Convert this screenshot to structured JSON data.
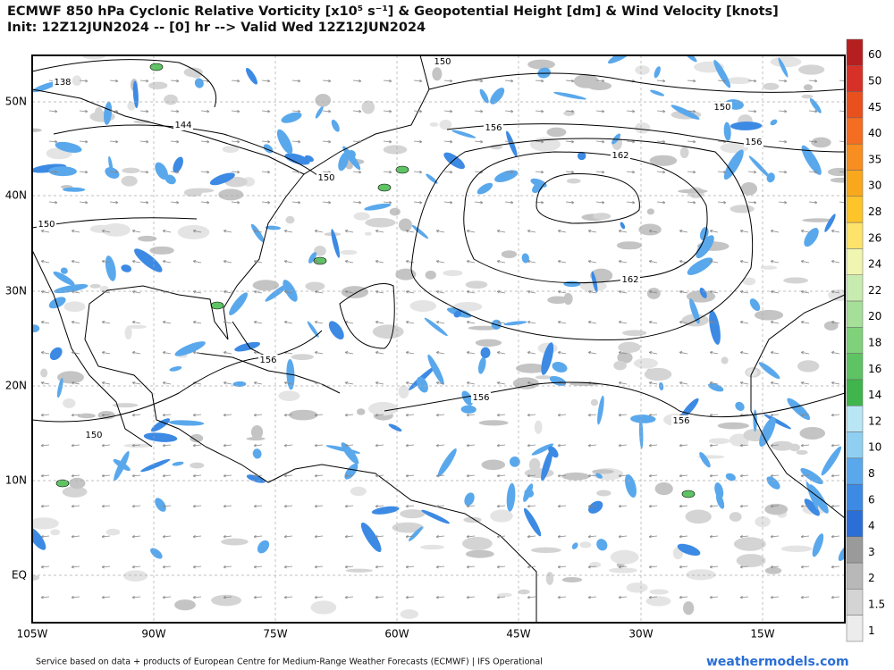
{
  "header": {
    "title": "ECMWF 850 hPa Cyclonic Relative Vorticity [x10⁵ s⁻¹] & Geopotential Height [dm] & Wind Velocity [knots]",
    "subtitle": "Init: 12Z12JUN2024 -- [0] hr --> Valid Wed 12Z12JUN2024"
  },
  "map": {
    "lat_labels": [
      "50N",
      "40N",
      "30N",
      "20N",
      "10N",
      "EQ"
    ],
    "lon_labels": [
      "105W",
      "90W",
      "75W",
      "60W",
      "45W",
      "30W",
      "15W"
    ],
    "contour_labels": [
      "150",
      "138",
      "144",
      "156",
      "162",
      "150",
      "156",
      "150",
      "150",
      "162",
      "156",
      "156",
      "156",
      "150"
    ]
  },
  "colorbar": {
    "levels": [
      60,
      50,
      45,
      40,
      35,
      30,
      28,
      26,
      24,
      22,
      20,
      18,
      16,
      14,
      12,
      10,
      8,
      6,
      4,
      3,
      2,
      1.5,
      1
    ],
    "colors": [
      "#b51f1f",
      "#d73027",
      "#e8501e",
      "#f46d20",
      "#f88d20",
      "#f9a81e",
      "#fdc52a",
      "#fde36a",
      "#f0f5b0",
      "#c8ecb0",
      "#a6df98",
      "#7fd27a",
      "#5ec463",
      "#3fb54c",
      "#b8e6f5",
      "#8fd0f2",
      "#5aa8ec",
      "#3c8ae4",
      "#2a6ed6",
      "#9a9a9a",
      "#b8b8b8",
      "#d4d4d4",
      "#ececec"
    ]
  },
  "footer": {
    "credit": "Service based on data + products of European Centre for Medium-Range Weather Forecasts (ECMWF) | IFS Operational",
    "watermark": "weathermodels.com"
  }
}
